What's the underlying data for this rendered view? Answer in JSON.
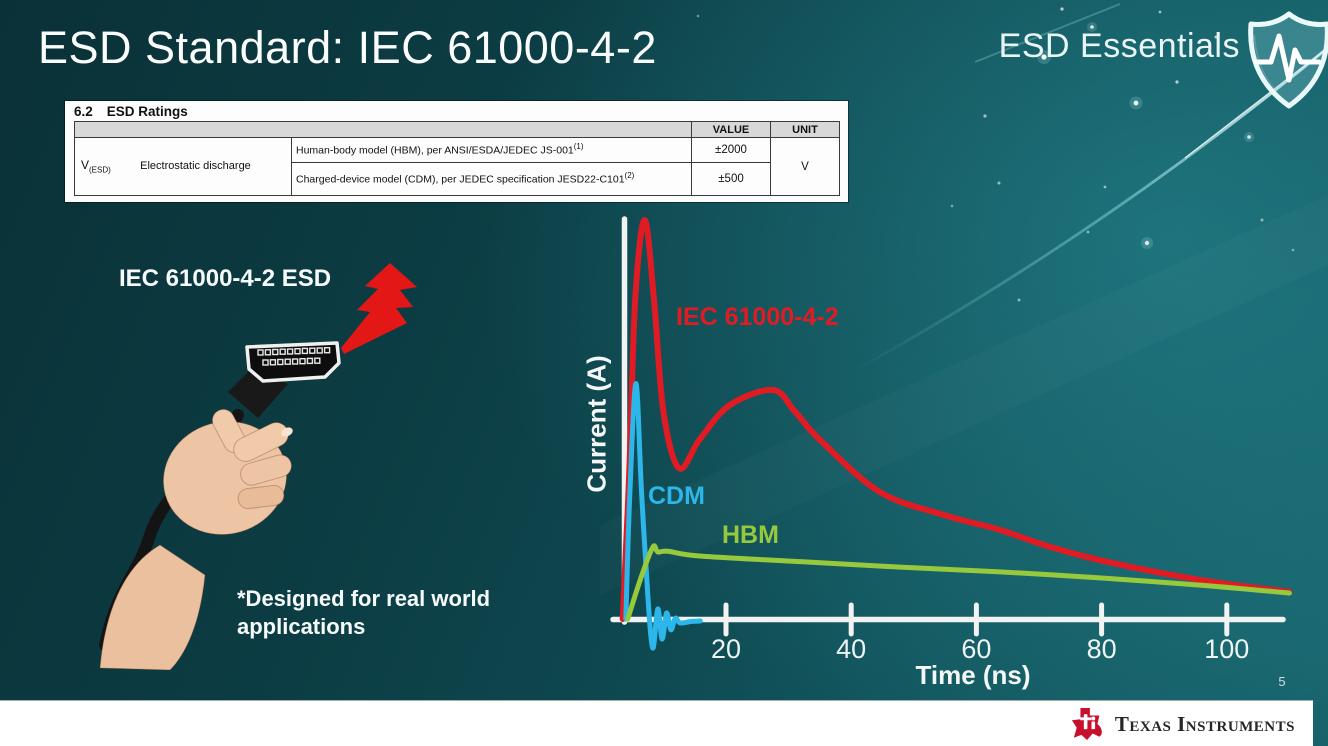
{
  "slide": {
    "title": "ESD Standard: IEC 61000-4-2",
    "series_title": "ESD Essentials",
    "page_number": "5",
    "footer_logo_text": "Texas Instruments"
  },
  "colors": {
    "background_teal": "#0e454c",
    "iec_red": "#e11b23",
    "cdm_blue": "#2cb6e9",
    "hbm_green": "#97c93d",
    "ti_brand_red": "#c8102e",
    "axis_white": "#f2f2f2"
  },
  "ratings_table": {
    "caption_number": "6.2",
    "caption_text": "ESD Ratings",
    "value_header": "VALUE",
    "unit_header": "UNIT",
    "row_symbol": "V",
    "row_symbol_sub": "(ESD)",
    "row_name": "Electrostatic discharge",
    "rows": [
      {
        "description": "Human-body model (HBM), per ANSI/ESDA/JEDEC JS-001",
        "footnote": "(1)",
        "value": "±2000"
      },
      {
        "description": "Charged-device model (CDM), per JEDEC specification JESD22-C101",
        "footnote": "(2)",
        "value": "±500"
      }
    ],
    "unit": "V"
  },
  "illustration": {
    "label": "IEC 61000-4-2 ESD",
    "note_line1": "*Designed for real world",
    "note_line2": "applications"
  },
  "chart_data": {
    "type": "line",
    "title": "",
    "xlabel": "Time (ns)",
    "ylabel": "Current (A)",
    "x_ticks": [
      20,
      40,
      60,
      80,
      100
    ],
    "xlim": [
      0,
      115
    ],
    "y_scale": "relative (no y ticks shown)",
    "ylim": [
      0,
      1.1
    ],
    "grid": false,
    "legend_position": "inline-labels",
    "series": [
      {
        "name": "IEC 61000-4-2",
        "color": "#e11b23",
        "x": [
          3.5,
          4.5,
          5.5,
          7,
          8.5,
          10,
          12.5,
          15.8,
          20.6,
          27.5,
          31,
          35,
          44.6,
          55,
          63.8,
          72,
          81.8,
          95.7,
          110
        ],
        "y": [
          0,
          0.35,
          0.8,
          1.0,
          0.8,
          0.52,
          0.378,
          0.45,
          0.536,
          0.574,
          0.52,
          0.449,
          0.318,
          0.26,
          0.223,
          0.18,
          0.14,
          0.098,
          0.068
        ]
      },
      {
        "name": "CDM",
        "color": "#2cb6e9",
        "x": [
          4,
          4.6,
          5.6,
          6.5,
          7.5,
          8.3,
          9.1,
          9.8,
          10.5,
          11.2,
          11.9,
          12.7,
          14.5,
          15.9
        ],
        "y": [
          0,
          0.3,
          0.59,
          0.32,
          0.06,
          -0.073,
          0.025,
          -0.05,
          0.015,
          -0.027,
          0.002,
          -0.01,
          -0.006,
          -0.005
        ]
      },
      {
        "name": "HBM",
        "color": "#97c93d",
        "x": [
          4.3,
          6.3,
          8.3,
          9.1,
          10.7,
          15.8,
          32.6,
          47.8,
          63.8,
          79.7,
          95.7,
          110
        ],
        "y": [
          0,
          0.098,
          0.18,
          0.168,
          0.17,
          0.158,
          0.143,
          0.13,
          0.118,
          0.103,
          0.085,
          0.065
        ]
      }
    ]
  }
}
